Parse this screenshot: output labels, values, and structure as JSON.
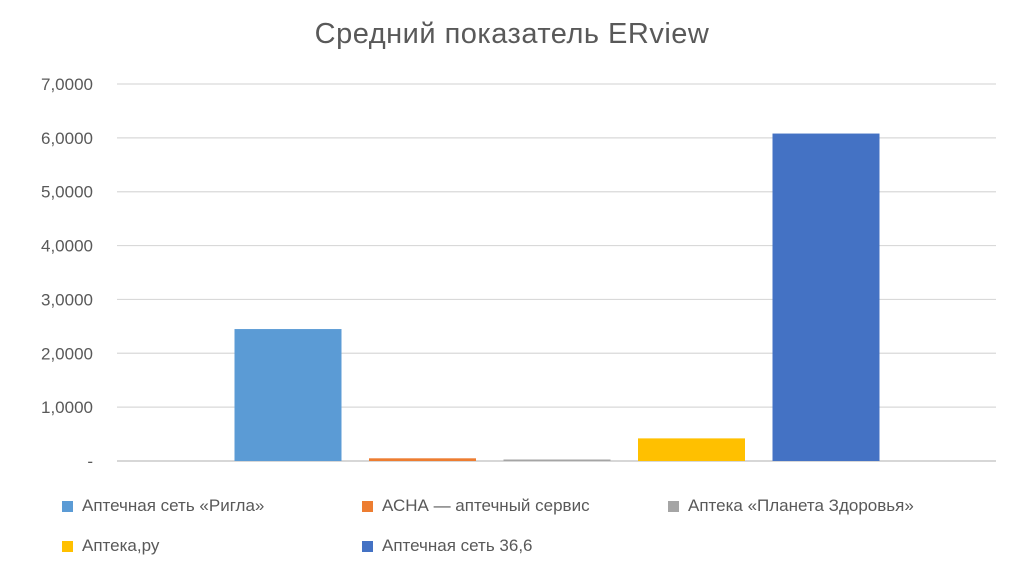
{
  "chart_data": {
    "type": "bar",
    "title": "Средний показатель ERview",
    "xlabel": "",
    "ylabel": "",
    "ylim": [
      0,
      7
    ],
    "y_ticks": [
      {
        "value": 0,
        "label": "-"
      },
      {
        "value": 1,
        "label": "1,0000"
      },
      {
        "value": 2,
        "label": "2,0000"
      },
      {
        "value": 3,
        "label": "3,0000"
      },
      {
        "value": 4,
        "label": "4,0000"
      },
      {
        "value": 5,
        "label": "5,0000"
      },
      {
        "value": 6,
        "label": "6,0000"
      },
      {
        "value": 7,
        "label": "7,0000"
      }
    ],
    "grid": true,
    "legend_position": "bottom",
    "series": [
      {
        "name": "Аптечная сеть «Ригла»",
        "value": 2.45,
        "color": "#5B9BD5"
      },
      {
        "name": "АСНА — аптечный сервис",
        "value": 0.05,
        "color": "#ED7D31"
      },
      {
        "name": "Аптека «Планета Здоровья»",
        "value": 0.02,
        "color": "#A5A5A5"
      },
      {
        "name": "Аптека,ру",
        "value": 0.42,
        "color": "#FFC000"
      },
      {
        "name": "Аптечная сеть 36,6",
        "value": 6.08,
        "color": "#4472C4"
      }
    ]
  }
}
